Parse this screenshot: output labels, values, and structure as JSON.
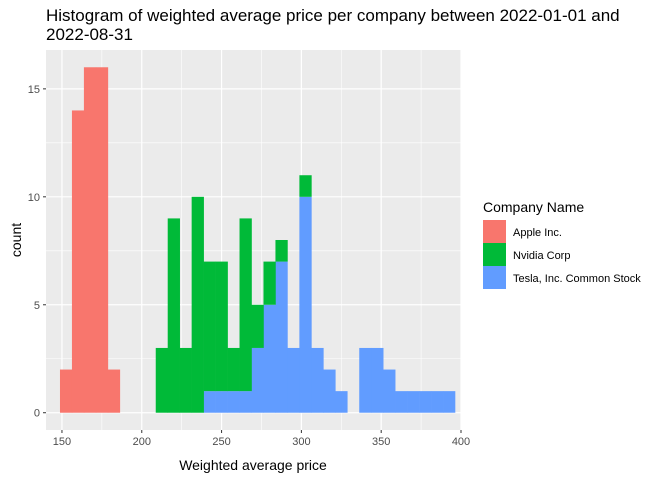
{
  "chart_data": {
    "type": "histogram",
    "title_lines": [
      "Histogram of weighted average price per company between 2022-01-01 and",
      "2022-08-31"
    ],
    "xlabel": "Weighted average price",
    "ylabel": "count",
    "xlim": [
      140,
      400
    ],
    "ylim": [
      -0.8,
      16.8
    ],
    "x_ticks": [
      150,
      200,
      250,
      300,
      350,
      400
    ],
    "y_ticks": [
      0,
      5,
      10,
      15
    ],
    "stacked": true,
    "bin_width": 7.5,
    "grid": true,
    "legend": {
      "title": "Company Name",
      "position": "right"
    },
    "series": [
      {
        "name": "Apple Inc.",
        "color": "#F8766D",
        "bins": [
          {
            "x0": 148.75,
            "x1": 156.25,
            "count": 2
          },
          {
            "x0": 156.25,
            "x1": 163.75,
            "count": 14
          },
          {
            "x0": 163.75,
            "x1": 171.25,
            "count": 16
          },
          {
            "x0": 171.25,
            "x1": 178.75,
            "count": 16
          },
          {
            "x0": 178.75,
            "x1": 186.25,
            "count": 2
          }
        ]
      },
      {
        "name": "Nvidia Corp",
        "color": "#00BA38",
        "bins": [
          {
            "x0": 208.75,
            "x1": 216.25,
            "count": 3
          },
          {
            "x0": 216.25,
            "x1": 223.75,
            "count": 9
          },
          {
            "x0": 223.75,
            "x1": 231.25,
            "count": 3
          },
          {
            "x0": 231.25,
            "x1": 238.75,
            "count": 10
          },
          {
            "x0": 238.75,
            "x1": 246.25,
            "count": 6
          },
          {
            "x0": 246.25,
            "x1": 253.75,
            "count": 6
          },
          {
            "x0": 253.75,
            "x1": 261.25,
            "count": 2
          },
          {
            "x0": 261.25,
            "x1": 268.75,
            "count": 8
          },
          {
            "x0": 268.75,
            "x1": 276.25,
            "count": 2
          },
          {
            "x0": 276.25,
            "x1": 283.75,
            "count": 2
          },
          {
            "x0": 283.75,
            "x1": 291.25,
            "count": 1
          },
          {
            "x0": 291.25,
            "x1": 298.75,
            "count": 0
          },
          {
            "x0": 298.75,
            "x1": 306.25,
            "count": 1
          }
        ]
      },
      {
        "name": "Tesla, Inc. Common Stock",
        "color": "#619CFF",
        "bins": [
          {
            "x0": 238.75,
            "x1": 246.25,
            "count": 1
          },
          {
            "x0": 246.25,
            "x1": 253.75,
            "count": 1
          },
          {
            "x0": 253.75,
            "x1": 261.25,
            "count": 1
          },
          {
            "x0": 261.25,
            "x1": 268.75,
            "count": 1
          },
          {
            "x0": 268.75,
            "x1": 276.25,
            "count": 3
          },
          {
            "x0": 276.25,
            "x1": 283.75,
            "count": 5
          },
          {
            "x0": 283.75,
            "x1": 291.25,
            "count": 7
          },
          {
            "x0": 291.25,
            "x1": 298.75,
            "count": 3
          },
          {
            "x0": 298.75,
            "x1": 306.25,
            "count": 10
          },
          {
            "x0": 306.25,
            "x1": 313.75,
            "count": 3
          },
          {
            "x0": 313.75,
            "x1": 321.25,
            "count": 2
          },
          {
            "x0": 321.25,
            "x1": 328.75,
            "count": 1
          },
          {
            "x0": 336.25,
            "x1": 343.75,
            "count": 3
          },
          {
            "x0": 343.75,
            "x1": 351.25,
            "count": 3
          },
          {
            "x0": 351.25,
            "x1": 358.75,
            "count": 2
          },
          {
            "x0": 358.75,
            "x1": 366.25,
            "count": 1
          },
          {
            "x0": 366.25,
            "x1": 373.75,
            "count": 1
          },
          {
            "x0": 373.75,
            "x1": 381.25,
            "count": 1
          },
          {
            "x0": 381.25,
            "x1": 388.75,
            "count": 1
          },
          {
            "x0": 388.75,
            "x1": 396.25,
            "count": 1
          }
        ]
      }
    ]
  }
}
